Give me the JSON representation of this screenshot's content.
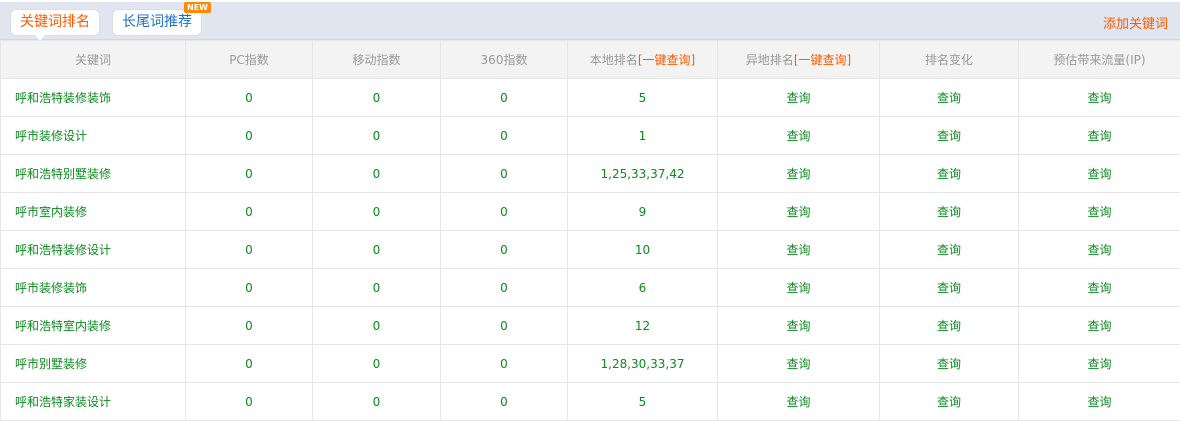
{
  "tabs": {
    "rank": "关键词排名",
    "longtail": "长尾词推荐",
    "new_badge": "NEW"
  },
  "add_keyword": "添加关键词",
  "headers": {
    "keyword": "关键词",
    "pc": "PC指数",
    "mobile": "移动指数",
    "s360": "360指数",
    "local": "本地排名",
    "local_link": "[一键查询]",
    "remote": "异地排名",
    "remote_link": "[一键查询]",
    "change": "排名变化",
    "traffic": "预估带来流量(IP)"
  },
  "query_label": "查询",
  "rows": [
    {
      "keyword": "呼和浩特装修装饰",
      "pc": "0",
      "mobile": "0",
      "s360": "0",
      "local": "5"
    },
    {
      "keyword": "呼市装修设计",
      "pc": "0",
      "mobile": "0",
      "s360": "0",
      "local": "1"
    },
    {
      "keyword": "呼和浩特别墅装修",
      "pc": "0",
      "mobile": "0",
      "s360": "0",
      "local": "1,25,33,37,42"
    },
    {
      "keyword": "呼市室内装修",
      "pc": "0",
      "mobile": "0",
      "s360": "0",
      "local": "9"
    },
    {
      "keyword": "呼和浩特装修设计",
      "pc": "0",
      "mobile": "0",
      "s360": "0",
      "local": "10"
    },
    {
      "keyword": "呼市装修装饰",
      "pc": "0",
      "mobile": "0",
      "s360": "0",
      "local": "6"
    },
    {
      "keyword": "呼和浩特室内装修",
      "pc": "0",
      "mobile": "0",
      "s360": "0",
      "local": "12"
    },
    {
      "keyword": "呼市别墅装修",
      "pc": "0",
      "mobile": "0",
      "s360": "0",
      "local": "1,28,30,33,37"
    },
    {
      "keyword": "呼和浩特家装设计",
      "pc": "0",
      "mobile": "0",
      "s360": "0",
      "local": "5"
    }
  ],
  "colors": {
    "accent": "#ff5a00",
    "link": "#1a73c9",
    "value": "#0b8a1e",
    "bar": "#e1e5ef"
  }
}
